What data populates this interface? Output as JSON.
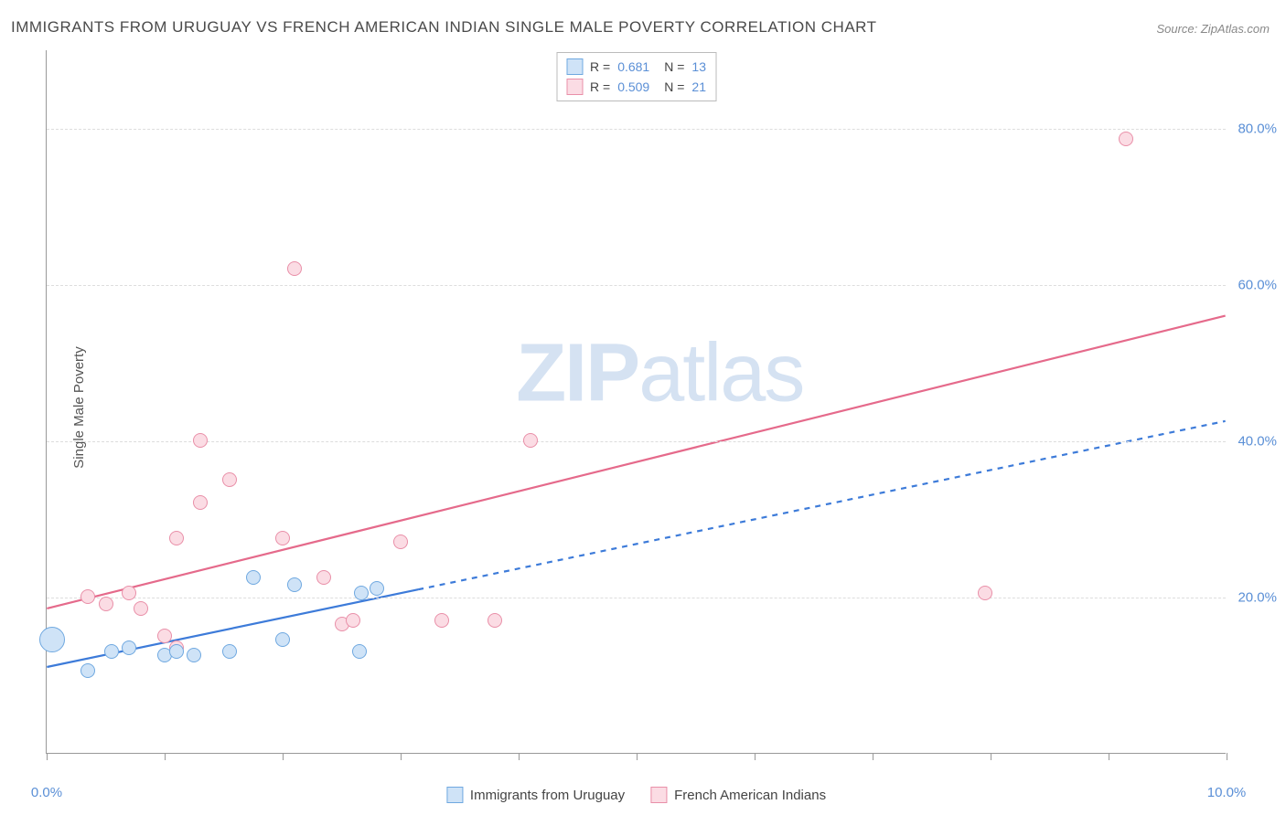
{
  "title": "IMMIGRANTS FROM URUGUAY VS FRENCH AMERICAN INDIAN SINGLE MALE POVERTY CORRELATION CHART",
  "source_label": "Source: ",
  "source_name": "ZipAtlas.com",
  "ylabel": "Single Male Poverty",
  "watermark_a": "ZIP",
  "watermark_b": "atlas",
  "chart": {
    "type": "scatter",
    "background_color": "#ffffff",
    "grid_color": "#dddddd",
    "axis_color": "#999999",
    "tick_label_color": "#5a8fd6",
    "xlim": [
      0,
      10
    ],
    "ylim": [
      0,
      90
    ],
    "yticks": [
      20,
      40,
      60,
      80
    ],
    "ytick_labels": [
      "20.0%",
      "40.0%",
      "60.0%",
      "80.0%"
    ],
    "xticks": [
      0,
      1,
      2,
      3,
      4,
      5,
      6,
      7,
      8,
      9,
      10
    ],
    "xtick_labels": {
      "0": "0.0%",
      "10": "10.0%"
    }
  },
  "series": {
    "blue": {
      "label": "Immigrants from Uruguay",
      "fill": "#cfe3f7",
      "stroke": "#6fa8e0",
      "line_color": "#3d7bd9",
      "r_label": "R = ",
      "r_value": "0.681",
      "n_label": "N = ",
      "n_value": "13",
      "trend": {
        "x1": 0,
        "y1": 11,
        "x2": 10,
        "y2": 42.5,
        "dash_from_x": 3.15
      },
      "points": [
        {
          "x": 0.05,
          "y": 14.5,
          "r": 14
        },
        {
          "x": 0.35,
          "y": 10.5,
          "r": 8
        },
        {
          "x": 0.55,
          "y": 13,
          "r": 8
        },
        {
          "x": 0.7,
          "y": 13.5,
          "r": 8
        },
        {
          "x": 1.0,
          "y": 12.5,
          "r": 8
        },
        {
          "x": 1.1,
          "y": 13,
          "r": 8
        },
        {
          "x": 1.25,
          "y": 12.5,
          "r": 8
        },
        {
          "x": 1.55,
          "y": 13,
          "r": 8
        },
        {
          "x": 1.75,
          "y": 22.5,
          "r": 8
        },
        {
          "x": 2.0,
          "y": 14.5,
          "r": 8
        },
        {
          "x": 2.1,
          "y": 21.5,
          "r": 8
        },
        {
          "x": 2.65,
          "y": 13,
          "r": 8
        },
        {
          "x": 2.67,
          "y": 20.5,
          "r": 8
        },
        {
          "x": 2.8,
          "y": 21,
          "r": 8
        }
      ]
    },
    "pink": {
      "label": "French American Indians",
      "fill": "#fbdce4",
      "stroke": "#e98fa8",
      "line_color": "#e56a8b",
      "r_label": "R = ",
      "r_value": "0.509",
      "n_label": "N = ",
      "n_value": "21",
      "trend": {
        "x1": 0,
        "y1": 18.5,
        "x2": 10,
        "y2": 56
      },
      "points": [
        {
          "x": 0.05,
          "y": 14.5,
          "r": 10
        },
        {
          "x": 0.35,
          "y": 20,
          "r": 8
        },
        {
          "x": 0.5,
          "y": 19,
          "r": 8
        },
        {
          "x": 0.7,
          "y": 20.5,
          "r": 8
        },
        {
          "x": 0.8,
          "y": 18.5,
          "r": 8
        },
        {
          "x": 1.0,
          "y": 15,
          "r": 8
        },
        {
          "x": 1.1,
          "y": 13.5,
          "r": 8
        },
        {
          "x": 1.1,
          "y": 27.5,
          "r": 8
        },
        {
          "x": 1.3,
          "y": 32,
          "r": 8
        },
        {
          "x": 1.3,
          "y": 40,
          "r": 8
        },
        {
          "x": 1.55,
          "y": 35,
          "r": 8
        },
        {
          "x": 2.0,
          "y": 27.5,
          "r": 8
        },
        {
          "x": 2.1,
          "y": 62,
          "r": 8
        },
        {
          "x": 2.35,
          "y": 22.5,
          "r": 8
        },
        {
          "x": 2.5,
          "y": 16.5,
          "r": 8
        },
        {
          "x": 2.6,
          "y": 17,
          "r": 8
        },
        {
          "x": 3.0,
          "y": 27,
          "r": 8
        },
        {
          "x": 3.35,
          "y": 17,
          "r": 8
        },
        {
          "x": 3.8,
          "y": 17,
          "r": 8
        },
        {
          "x": 4.1,
          "y": 40,
          "r": 8
        },
        {
          "x": 7.95,
          "y": 20.5,
          "r": 8
        },
        {
          "x": 9.15,
          "y": 78.5,
          "r": 8
        }
      ]
    }
  }
}
